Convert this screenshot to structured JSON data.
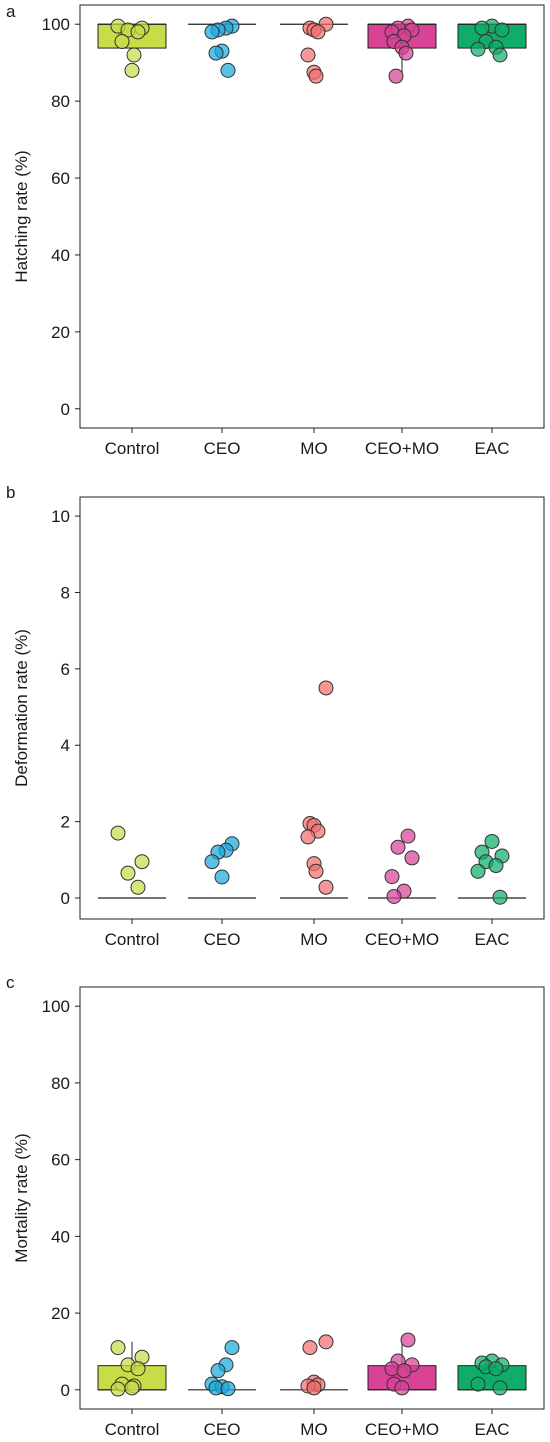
{
  "colors": {
    "Control": "#c8dc4a",
    "CEO": "#1aa8dc",
    "MO": "#f26e6e",
    "CEO+MO": "#d84396",
    "EAC": "#10ad6a"
  },
  "chart_data": [
    {
      "panel": "a",
      "type": "box-strip",
      "ylabel": "Hatching rate (%)",
      "ylim": [
        -5,
        105
      ],
      "yticks": [
        0,
        20,
        40,
        60,
        80,
        100
      ],
      "categories": [
        "Control",
        "CEO",
        "MO",
        "CEO+MO",
        "EAC"
      ],
      "boxes": [
        {
          "q1": 93.8,
          "median": 100,
          "q3": 100,
          "wlow": 93.8,
          "whigh": 100
        },
        {
          "q1": 100,
          "median": 100,
          "q3": 100,
          "wlow": 100,
          "whigh": 100
        },
        {
          "q1": 100,
          "median": 100,
          "q3": 100,
          "wlow": 100,
          "whigh": 100
        },
        {
          "q1": 93.8,
          "median": 100,
          "q3": 100,
          "wlow": 87.5,
          "whigh": 100
        },
        {
          "q1": 93.8,
          "median": 100,
          "q3": 100,
          "wlow": 93.8,
          "whigh": 100
        }
      ],
      "points": [
        [
          99.5,
          99.0,
          98.5,
          98.0,
          95.5,
          92.0,
          88.0
        ],
        [
          99.5,
          99.0,
          98.5,
          98.0,
          93.0,
          92.5,
          88.0
        ],
        [
          100,
          99.0,
          98.5,
          98.0,
          92.0,
          87.5,
          86.5
        ],
        [
          99.5,
          99.0,
          98.5,
          98.0,
          97.0,
          95.5,
          94.0,
          92.5,
          86.5
        ],
        [
          99.5,
          99.0,
          98.5,
          95.5,
          94.0,
          93.5,
          92.0
        ]
      ]
    },
    {
      "panel": "b",
      "type": "box-strip",
      "ylabel": "Deformation rate (%)",
      "ylim": [
        -0.55,
        10.5
      ],
      "yticks": [
        0,
        2,
        4,
        6,
        8,
        10
      ],
      "categories": [
        "Control",
        "CEO",
        "MO",
        "CEO+MO",
        "EAC"
      ],
      "boxes": [
        {
          "q1": 0,
          "median": 0,
          "q3": 0,
          "wlow": 0,
          "whigh": 0
        },
        {
          "q1": 0,
          "median": 0,
          "q3": 0,
          "wlow": 0,
          "whigh": 0
        },
        {
          "q1": 0,
          "median": 0,
          "q3": 0,
          "wlow": 0,
          "whigh": 0
        },
        {
          "q1": 0,
          "median": 0,
          "q3": 0,
          "wlow": 0,
          "whigh": 0
        },
        {
          "q1": 0,
          "median": 0,
          "q3": 0,
          "wlow": 0,
          "whigh": 0
        }
      ],
      "points": [
        [
          1.7,
          0.95,
          0.65,
          0.28
        ],
        [
          1.42,
          1.25,
          1.2,
          0.95,
          0.55
        ],
        [
          5.5,
          1.95,
          1.9,
          1.75,
          1.6,
          0.9,
          0.7,
          0.28
        ],
        [
          1.62,
          1.33,
          1.05,
          0.56,
          0.18,
          0.04
        ],
        [
          1.48,
          1.2,
          1.1,
          0.95,
          0.85,
          0.7,
          0.02
        ]
      ]
    },
    {
      "panel": "c",
      "type": "box-strip",
      "ylabel": "Mortality rate (%)",
      "ylim": [
        -5,
        105
      ],
      "yticks": [
        0,
        20,
        40,
        60,
        80,
        100
      ],
      "categories": [
        "Control",
        "CEO",
        "MO",
        "CEO+MO",
        "EAC"
      ],
      "boxes": [
        {
          "q1": 0,
          "median": 0,
          "q3": 6.3,
          "wlow": 0,
          "whigh": 12.5
        },
        {
          "q1": 0,
          "median": 0,
          "q3": 0,
          "wlow": 0,
          "whigh": 0
        },
        {
          "q1": 0,
          "median": 0,
          "q3": 0,
          "wlow": 0,
          "whigh": 0
        },
        {
          "q1": 0,
          "median": 0,
          "q3": 6.3,
          "wlow": 0,
          "whigh": 12.5
        },
        {
          "q1": 0,
          "median": 0,
          "q3": 6.3,
          "wlow": 0,
          "whigh": 6.3
        }
      ],
      "points": [
        [
          11.0,
          8.5,
          6.5,
          5.5,
          1.5,
          1.0,
          0.5,
          0.2
        ],
        [
          11.0,
          6.5,
          5.0,
          1.5,
          0.8,
          0.5,
          0.3
        ],
        [
          12.5,
          11.0,
          2.0,
          1.3,
          1.0,
          0.5
        ],
        [
          13.0,
          7.5,
          6.5,
          5.5,
          5.0,
          1.5,
          0.5
        ],
        [
          7.5,
          7.0,
          6.5,
          6.0,
          5.5,
          1.5,
          0.5
        ]
      ]
    }
  ]
}
